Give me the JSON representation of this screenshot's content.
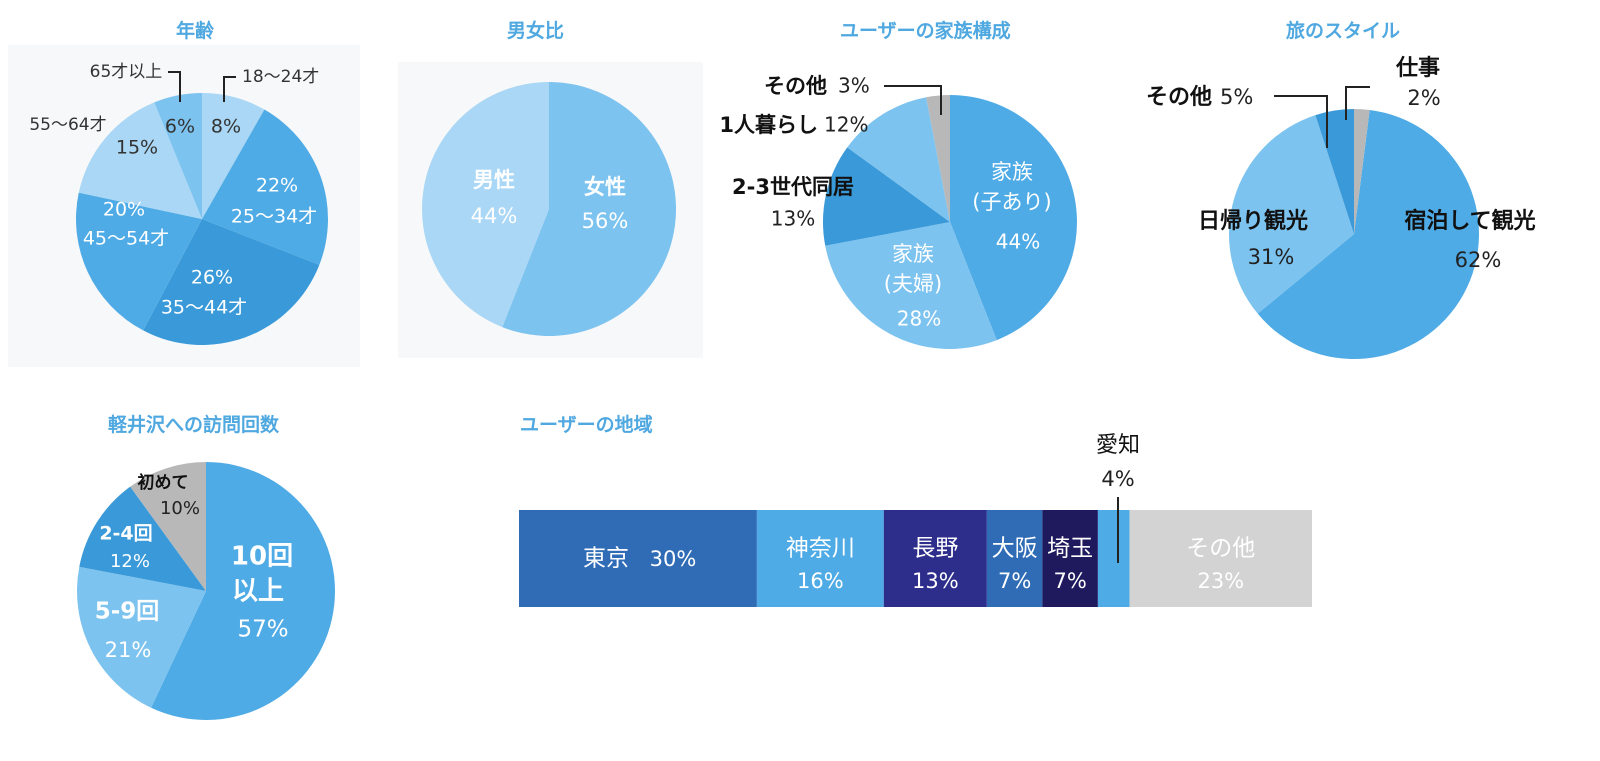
{
  "colors": {
    "title": "#4fa8e0",
    "blue_dark": "#3a9ad9",
    "blue_mid": "#4fabe6",
    "blue_light": "#7dc3ef",
    "blue_pale": "#a9d7f5",
    "gray": "#b8b8b8",
    "navy": "#2d2e8c",
    "navy_dark": "#1f1a5e",
    "royal": "#306cb6",
    "light_gray": "#d3d3d3"
  },
  "chart_data": [
    {
      "type": "pie",
      "title": "年齢",
      "slices": [
        {
          "label": "18〜24才",
          "value": 8,
          "value_text": "8%"
        },
        {
          "label": "25〜34才",
          "value": 22,
          "value_text": "22%"
        },
        {
          "label": "35〜44才",
          "value": 26,
          "value_text": "26%"
        },
        {
          "label": "45〜54才",
          "value": 20,
          "value_text": "20%"
        },
        {
          "label": "55〜64才",
          "value": 15,
          "value_text": "15%"
        },
        {
          "label": "65才以上",
          "value": 6,
          "value_text": "6%"
        }
      ]
    },
    {
      "type": "pie",
      "title": "男女比",
      "slices": [
        {
          "label": "女性",
          "value": 56,
          "value_text": "56%"
        },
        {
          "label": "男性",
          "value": 44,
          "value_text": "44%"
        }
      ]
    },
    {
      "type": "pie",
      "title": "ユーザーの家族構成",
      "slices": [
        {
          "label": "家族",
          "label2": "(子あり)",
          "value": 44,
          "value_text": "44%"
        },
        {
          "label": "家族",
          "label2": "(夫婦)",
          "value": 28,
          "value_text": "28%"
        },
        {
          "label": "2-3世代同居",
          "value": 13,
          "value_text": "13%"
        },
        {
          "label": "1人暮らし",
          "value": 12,
          "value_text": "12%"
        },
        {
          "label": "その他",
          "value": 3,
          "value_text": "3%"
        }
      ]
    },
    {
      "type": "pie",
      "title": "旅のスタイル",
      "slices": [
        {
          "label": "宿泊して観光",
          "value": 62,
          "value_text": "62%"
        },
        {
          "label": "日帰り観光",
          "value": 31,
          "value_text": "31%"
        },
        {
          "label": "その他",
          "value": 5,
          "value_text": "5%"
        },
        {
          "label": "仕事",
          "value": 2,
          "value_text": "2%"
        }
      ]
    },
    {
      "type": "pie",
      "title": "軽井沢への訪問回数",
      "slices": [
        {
          "label": "10回",
          "label2": "以上",
          "value": 57,
          "value_text": "57%"
        },
        {
          "label": "5-9回",
          "value": 21,
          "value_text": "21%"
        },
        {
          "label": "2-4回",
          "value": 12,
          "value_text": "12%"
        },
        {
          "label": "初めて",
          "value": 10,
          "value_text": "10%"
        }
      ]
    },
    {
      "type": "bar",
      "orientation": "stacked-horizontal",
      "title": "ユーザーの地域",
      "segments": [
        {
          "label": "東京",
          "value": 30,
          "value_text": "30%"
        },
        {
          "label": "神奈川",
          "value": 16,
          "value_text": "16%"
        },
        {
          "label": "長野",
          "value": 13,
          "value_text": "13%"
        },
        {
          "label": "大阪",
          "value": 7,
          "value_text": "7%"
        },
        {
          "label": "埼玉",
          "value": 7,
          "value_text": "7%"
        },
        {
          "label": "愛知",
          "value": 4,
          "value_text": "4%"
        },
        {
          "label": "その他",
          "value": 23,
          "value_text": "23%"
        }
      ]
    }
  ]
}
